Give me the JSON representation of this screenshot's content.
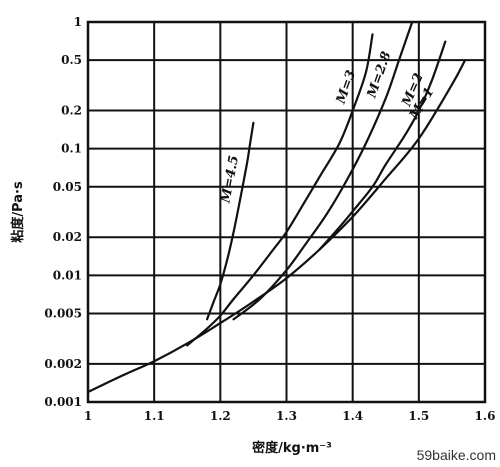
{
  "chart_data": {
    "type": "line",
    "xlabel": "密度/kg·m⁻³",
    "ylabel": "粘度/Pa·s",
    "x_scale": "linear",
    "y_scale": "log",
    "xlim": [
      1.0,
      1.6
    ],
    "ylim": [
      0.001,
      1
    ],
    "x_ticks": [
      1.0,
      1.1,
      1.2,
      1.3,
      1.4,
      1.5,
      1.6
    ],
    "x_tick_labels": [
      "1",
      "1.1",
      "1.2",
      "1.3",
      "1.4",
      "1.5",
      "1.6"
    ],
    "y_ticks": [
      0.001,
      0.002,
      0.005,
      0.01,
      0.02,
      0.05,
      0.1,
      0.2,
      0.5,
      1
    ],
    "y_tick_labels": [
      "0.001",
      "0.002",
      "0.005",
      "0.01",
      "0.02",
      "0.05",
      "0.1",
      "0.2",
      "0.5",
      "1"
    ],
    "grid": true,
    "series": [
      {
        "name": "M=1",
        "x": [
          1.0,
          1.05,
          1.1,
          1.15,
          1.2,
          1.25,
          1.3,
          1.35,
          1.4,
          1.45,
          1.5,
          1.55,
          1.57
        ],
        "y": [
          0.0012,
          0.0016,
          0.0021,
          0.0029,
          0.0042,
          0.0062,
          0.0095,
          0.016,
          0.029,
          0.058,
          0.12,
          0.32,
          0.5
        ]
      },
      {
        "name": "M=2",
        "x": [
          1.35,
          1.38,
          1.4,
          1.43,
          1.45,
          1.48,
          1.5,
          1.52,
          1.54
        ],
        "y": [
          0.016,
          0.024,
          0.032,
          0.05,
          0.075,
          0.13,
          0.2,
          0.35,
          0.7
        ]
      },
      {
        "name": "M=2.8",
        "x": [
          1.22,
          1.26,
          1.3,
          1.33,
          1.36,
          1.39,
          1.42,
          1.45,
          1.47,
          1.49
        ],
        "y": [
          0.0045,
          0.0065,
          0.011,
          0.018,
          0.03,
          0.055,
          0.11,
          0.25,
          0.5,
          1.0
        ]
      },
      {
        "name": "M=3",
        "x": [
          1.15,
          1.18,
          1.2,
          1.22,
          1.25,
          1.28,
          1.3,
          1.33,
          1.35,
          1.38,
          1.4,
          1.42,
          1.43
        ],
        "y": [
          0.0028,
          0.0038,
          0.0048,
          0.0065,
          0.01,
          0.016,
          0.022,
          0.04,
          0.06,
          0.11,
          0.2,
          0.4,
          0.8
        ]
      },
      {
        "name": "M=4.5",
        "x": [
          1.18,
          1.19,
          1.2,
          1.21,
          1.22,
          1.23,
          1.24,
          1.245,
          1.25
        ],
        "y": [
          0.0045,
          0.0062,
          0.0085,
          0.013,
          0.022,
          0.04,
          0.075,
          0.11,
          0.16
        ]
      }
    ],
    "curve_labels": [
      {
        "text": "M=4.5",
        "series": "M=4.5"
      },
      {
        "text": "M=3",
        "series": "M=3"
      },
      {
        "text": "M=2.8",
        "series": "M=2.8"
      },
      {
        "text": "M=2",
        "series": "M=2"
      },
      {
        "text": "M=1",
        "series": "M=1"
      }
    ]
  },
  "watermark": "59baike.com"
}
